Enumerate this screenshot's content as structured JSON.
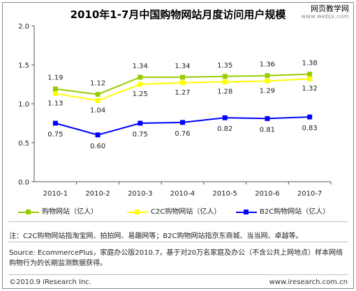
{
  "title": "2010年1-7月中国购物网站月度访问用户规模",
  "watermark": {
    "line1": "网页教学网",
    "line2": "www.webjx.com"
  },
  "chart_data": {
    "type": "line",
    "categories": [
      "2010-1",
      "2010-2",
      "2010-3",
      "2010-4",
      "2010-5",
      "2010-6",
      "2010-7"
    ],
    "ylim": [
      0,
      2.0
    ],
    "yticks": [
      "0.0",
      "0.5",
      "1.0",
      "1.5",
      "2.0"
    ],
    "grid": false,
    "legend_position": "bottom",
    "series": [
      {
        "name": "购物网站（亿人）",
        "color": "#99cc00",
        "values": [
          1.19,
          1.12,
          1.34,
          1.34,
          1.35,
          1.36,
          1.38
        ],
        "labels": [
          "1.19",
          "1.12",
          "1.34",
          "1.34",
          "1.35",
          "1.36",
          "1.38"
        ]
      },
      {
        "name": "C2C购物网站（亿人）",
        "color": "#ffff00",
        "values": [
          1.13,
          1.04,
          1.25,
          1.27,
          1.28,
          1.29,
          1.32
        ],
        "labels": [
          "1.13",
          "1.04",
          "1.25",
          "1.27",
          "1.28",
          "1.29",
          "1.32"
        ]
      },
      {
        "name": "B2C购物网站（亿人）",
        "color": "#0000ff",
        "values": [
          0.75,
          0.6,
          0.75,
          0.76,
          0.82,
          0.81,
          0.83
        ],
        "labels": [
          "0.75",
          "0.60",
          "0.75",
          "0.76",
          "0.82",
          "0.81",
          "0.83"
        ]
      }
    ]
  },
  "note": "注：C2C购物网站指淘宝网、拍拍网、易趣网等；B2C购物网站指京东商城、当当网、卓越等。",
  "source": "Source: EcommercePlus，家庭办公版2010.7，基于对20万名家庭及办公（不含公共上网地点）样本网络购物行为的长期监测数据获得。",
  "footer": {
    "left": "©2010.9 iResearch Inc.",
    "right": "www.iresearch.com.cn"
  }
}
